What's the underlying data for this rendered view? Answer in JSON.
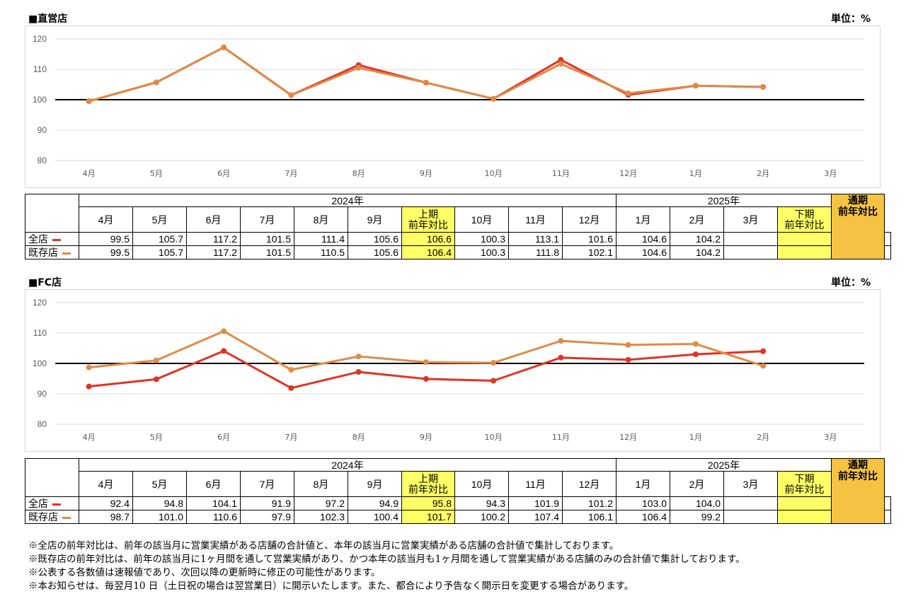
{
  "colors": {
    "all": "#e03323",
    "existing": "#e08a45",
    "half": "#ffff66",
    "full": "#f5c242"
  },
  "months_2024": [
    "4月",
    "5月",
    "6月",
    "7月",
    "8月",
    "9月"
  ],
  "months_2024b": [
    "10月",
    "11月",
    "12月"
  ],
  "months_2025": [
    "1月",
    "2月",
    "3月"
  ],
  "year_2024": "2024年",
  "year_2025": "2025年",
  "first_half": "上期\n前年対比",
  "second_half": "下期\n前年対比",
  "full_year": "通期\n前年対比",
  "row_all": "全店",
  "row_existing": "既存店",
  "unit": "単位：%",
  "chart_data": [
    {
      "type": "line",
      "title": "■直営店",
      "categories": [
        "4月",
        "5月",
        "6月",
        "7月",
        "8月",
        "9月",
        "10月",
        "11月",
        "12月",
        "1月",
        "2月",
        "3月"
      ],
      "ylim": [
        80,
        120
      ],
      "yticks": [
        80,
        90,
        100,
        110,
        120
      ],
      "series": [
        {
          "name": "全店",
          "values": [
            99.5,
            105.7,
            117.2,
            101.5,
            111.4,
            105.6,
            100.3,
            113.1,
            101.6,
            104.6,
            104.2,
            null
          ]
        },
        {
          "name": "既存店",
          "values": [
            99.5,
            105.7,
            117.2,
            101.5,
            110.5,
            105.6,
            100.3,
            111.8,
            102.1,
            104.6,
            104.2,
            null
          ]
        }
      ],
      "table": {
        "all": [
          "99.5",
          "105.7",
          "117.2",
          "101.5",
          "111.4",
          "105.6",
          "106.6",
          "100.3",
          "113.1",
          "101.6",
          "104.6",
          "104.2",
          "",
          "",
          ""
        ],
        "existing": [
          "99.5",
          "105.7",
          "117.2",
          "101.5",
          "110.5",
          "105.6",
          "106.4",
          "100.3",
          "111.8",
          "102.1",
          "104.6",
          "104.2",
          "",
          "",
          ""
        ]
      }
    },
    {
      "type": "line",
      "title": "■FC店",
      "categories": [
        "4月",
        "5月",
        "6月",
        "7月",
        "8月",
        "9月",
        "10月",
        "11月",
        "12月",
        "1月",
        "2月",
        "3月"
      ],
      "ylim": [
        80,
        120
      ],
      "yticks": [
        80,
        90,
        100,
        110,
        120
      ],
      "series": [
        {
          "name": "全店",
          "values": [
            92.4,
            94.8,
            104.1,
            91.9,
            97.2,
            94.9,
            94.3,
            101.9,
            101.2,
            103.0,
            104.0,
            null
          ]
        },
        {
          "name": "既存店",
          "values": [
            98.7,
            101.0,
            110.6,
            97.9,
            102.3,
            100.4,
            100.2,
            107.4,
            106.1,
            106.4,
            99.2,
            null
          ]
        }
      ],
      "table": {
        "all": [
          "92.4",
          "94.8",
          "104.1",
          "91.9",
          "97.2",
          "94.9",
          "95.8",
          "94.3",
          "101.9",
          "101.2",
          "103.0",
          "104.0",
          "",
          "",
          ""
        ],
        "existing": [
          "98.7",
          "101.0",
          "110.6",
          "97.9",
          "102.3",
          "100.4",
          "101.7",
          "100.2",
          "107.4",
          "106.1",
          "106.4",
          "99.2",
          "",
          "",
          ""
        ]
      }
    }
  ],
  "notes": [
    "※全店の前年対比は、前年の該当月に営業実績がある店舗の合計値と、本年の該当月に営業実績がある店舗の合計値で集計しております。",
    "※既存店の前年対比は、前年の該当月に1ヶ月間を通して営業実績があり、かつ本年の該当月も1ヶ月間を通して営業実績がある店舗のみの合計値で集計しております。",
    "※公表する各数値は速報値であり、次回以降の更新時に修正の可能性があります。",
    "※本お知らせは、毎翌月10 日（土日祝の場合は翌営業日）に開示いたします。また、都合により予告なく開示日を変更する場合があります。"
  ]
}
